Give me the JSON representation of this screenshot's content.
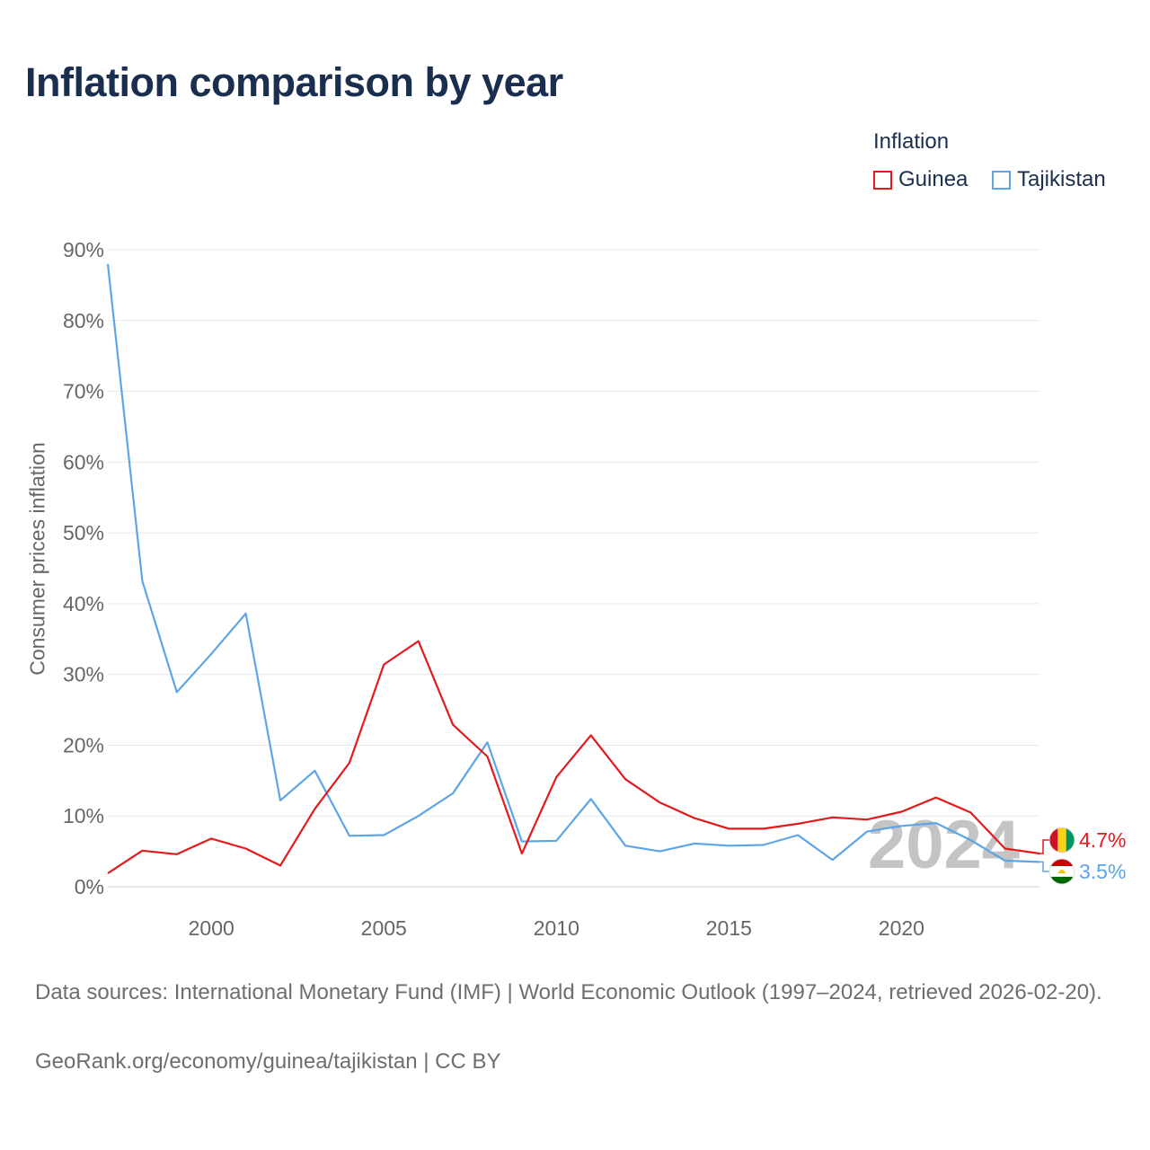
{
  "title": "Inflation comparison by year",
  "legend": {
    "title": "Inflation",
    "items": [
      {
        "name": "Guinea",
        "color": "#e31a1c"
      },
      {
        "name": "Tajikistan",
        "color": "#5da5e6"
      }
    ]
  },
  "watermark_year": "2024",
  "footer": {
    "sources": "Data sources: International Monetary Fund (IMF) | World Economic Outlook (1997–2024, retrieved 2026-02-20).",
    "credit": "GeoRank.org/economy/guinea/tajikistan | CC BY"
  },
  "chart_data": {
    "type": "line",
    "title": "Inflation comparison by year",
    "xlabel": "",
    "ylabel": "Consumer prices inflation",
    "xlim": [
      1997,
      2024
    ],
    "ylim": [
      0,
      90
    ],
    "x_ticks": [
      2000,
      2005,
      2010,
      2015,
      2020
    ],
    "y_ticks": [
      0,
      10,
      20,
      30,
      40,
      50,
      60,
      70,
      80,
      90
    ],
    "y_tick_labels": [
      "0%",
      "10%",
      "20%",
      "30%",
      "40%",
      "50%",
      "60%",
      "70%",
      "80%",
      "90%"
    ],
    "x": [
      1997,
      1998,
      1999,
      2000,
      2001,
      2002,
      2003,
      2004,
      2005,
      2006,
      2007,
      2008,
      2009,
      2010,
      2011,
      2012,
      2013,
      2014,
      2015,
      2016,
      2017,
      2018,
      2019,
      2020,
      2021,
      2022,
      2023,
      2024
    ],
    "series": [
      {
        "name": "Guinea",
        "color": "#e31a1c",
        "end_label": "4.7%",
        "values": [
          1.9,
          5.1,
          4.6,
          6.8,
          5.4,
          3.0,
          11.0,
          17.5,
          31.4,
          34.7,
          22.9,
          18.4,
          4.7,
          15.5,
          21.4,
          15.2,
          11.9,
          9.7,
          8.2,
          8.2,
          8.9,
          9.8,
          9.5,
          10.6,
          12.6,
          10.5,
          5.4,
          4.7
        ]
      },
      {
        "name": "Tajikistan",
        "color": "#5da5e6",
        "end_label": "3.5%",
        "values": [
          88.0,
          43.2,
          27.5,
          32.9,
          38.6,
          12.2,
          16.4,
          7.2,
          7.3,
          10.0,
          13.2,
          20.4,
          6.4,
          6.5,
          12.4,
          5.8,
          5.0,
          6.1,
          5.8,
          5.9,
          7.3,
          3.8,
          7.8,
          8.6,
          9.0,
          6.6,
          3.7,
          3.5
        ]
      }
    ]
  }
}
